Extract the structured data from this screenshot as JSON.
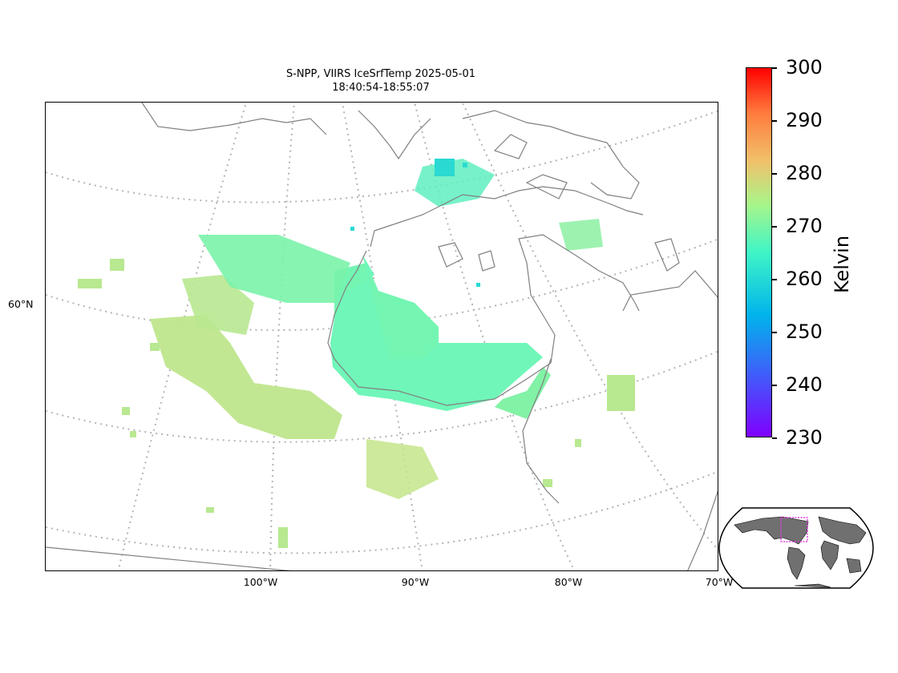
{
  "title": {
    "line1": "S-NPP, VIIRS IceSrfTemp 2025-05-01",
    "line2": "18:40:54-18:55:07"
  },
  "map": {
    "projection": "regional conic over central Canada / Hudson Bay",
    "graticule": "dotted gray",
    "coastline_color": "#808080",
    "lon_labels": [
      "100°W",
      "90°W",
      "80°W",
      "70°W"
    ],
    "lat_labels": [
      "60°N"
    ]
  },
  "colorbar": {
    "title": "Kelvin",
    "min": 230,
    "max": 300,
    "ticks": [
      "300",
      "290",
      "280",
      "270",
      "260",
      "250",
      "240",
      "230"
    ],
    "colormap": "rainbow"
  },
  "inset": {
    "content": "global overview map",
    "highlight_color": "#e040e0"
  },
  "colors": {
    "cold_ice": "#3ff0c0",
    "mid": "#6ff7b6",
    "warm_land": "#c2e68a"
  }
}
